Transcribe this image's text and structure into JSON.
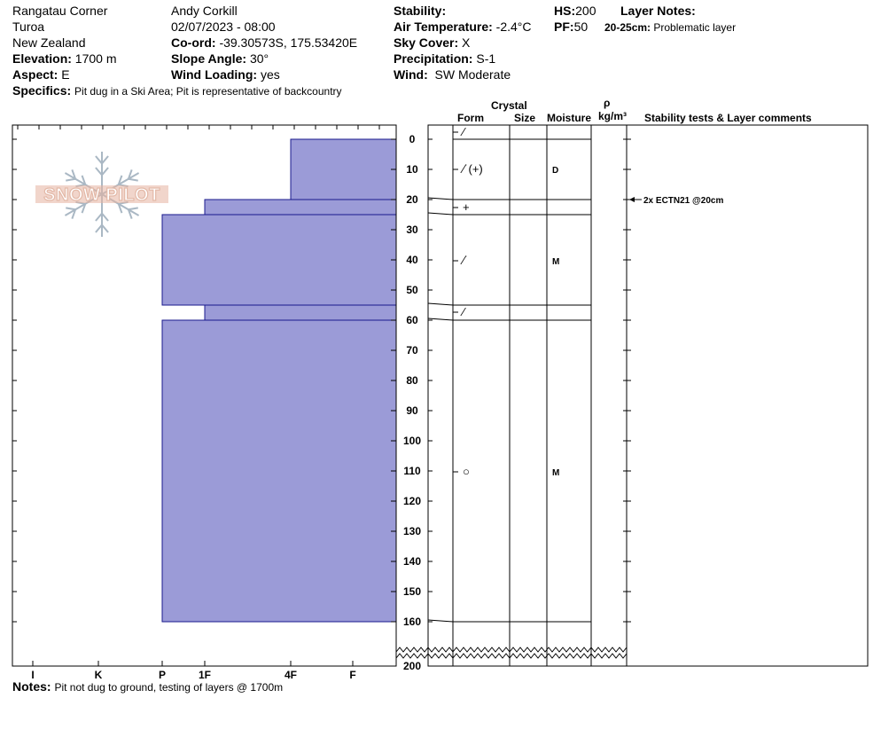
{
  "header": {
    "location": "Rangatau Corner",
    "area": "Turoa",
    "country": "New Zealand",
    "elevation_label": "Elevation:",
    "elevation": "1700 m",
    "aspect_label": "Aspect:",
    "aspect": "E",
    "observer": "Andy Corkill",
    "datetime": "02/07/2023 - 08:00",
    "coord_label": "Co-ord:",
    "coord": "-39.30573S, 175.53420E",
    "slope_label": "Slope Angle:",
    "slope": "30°",
    "wind_loading_label": "Wind Loading:",
    "wind_loading": "yes",
    "stability_label": "Stability:",
    "stability": "",
    "air_temp_label": "Air Temperature:",
    "air_temp": "-2.4°C",
    "sky_label": "Sky Cover:",
    "sky": "X",
    "precip_label": "Precipitation:",
    "precip": "S-1",
    "wind_label": "Wind:",
    "wind": "SW Moderate",
    "hs_label": "HS:",
    "hs": "200",
    "pf_label": "PF:",
    "pf": "50",
    "layer_notes_label": "Layer Notes:",
    "layer_note_range": "20-25cm:",
    "layer_note_text": "Problematic layer",
    "specifics_label": "Specifics:",
    "specifics": "Pit dug in a Ski Area; Pit is representative of backcountry",
    "notes_label": "Notes:",
    "notes": "Pit not dug to ground, testing of layers @ 1700m"
  },
  "columns": {
    "crystal": "Crystal",
    "form": "Form",
    "size": "Size",
    "moisture": "Moisture",
    "rho": "ρ",
    "density_unit": "kg/m³",
    "stability_tests": "Stability tests & Layer comments"
  },
  "logo_text": "SNOW PILOT",
  "colors": {
    "hardness_fill": "#9b9bd7",
    "hardness_stroke": "#1a1a8c"
  },
  "chart_data": {
    "type": "bar",
    "orientation": "horizontal",
    "title": "",
    "x_axis": {
      "categories": [
        "I",
        "K",
        "P",
        "1F",
        "4F",
        "F"
      ],
      "direction": "hardness increases to the left"
    },
    "y_axis": {
      "label": "",
      "unit": "cm",
      "range": [
        0,
        200
      ],
      "ticks": [
        0,
        10,
        20,
        30,
        40,
        50,
        60,
        70,
        80,
        90,
        100,
        110,
        120,
        130,
        140,
        150,
        160,
        200
      ]
    },
    "layers": [
      {
        "top": 0,
        "bottom": 20,
        "hardness": "4F",
        "form": "⁄",
        "moisture": ""
      },
      {
        "top": 0,
        "bottom": 20,
        "hardness": "4F",
        "form": "⁄˙(+)",
        "moisture": "D"
      },
      {
        "top": 20,
        "bottom": 25,
        "hardness": "1F",
        "form": "+",
        "moisture": ""
      },
      {
        "top": 25,
        "bottom": 55,
        "hardness": "P",
        "form": "⁄˙",
        "moisture": "M"
      },
      {
        "top": 55,
        "bottom": 60,
        "hardness": "1F",
        "form": "⁄",
        "moisture": ""
      },
      {
        "top": 60,
        "bottom": 160,
        "hardness": "P",
        "form": "○",
        "moisture": "M"
      }
    ],
    "stability_tests": [
      {
        "depth": 20,
        "text": "2x ECTN21 @20cm"
      }
    ]
  }
}
